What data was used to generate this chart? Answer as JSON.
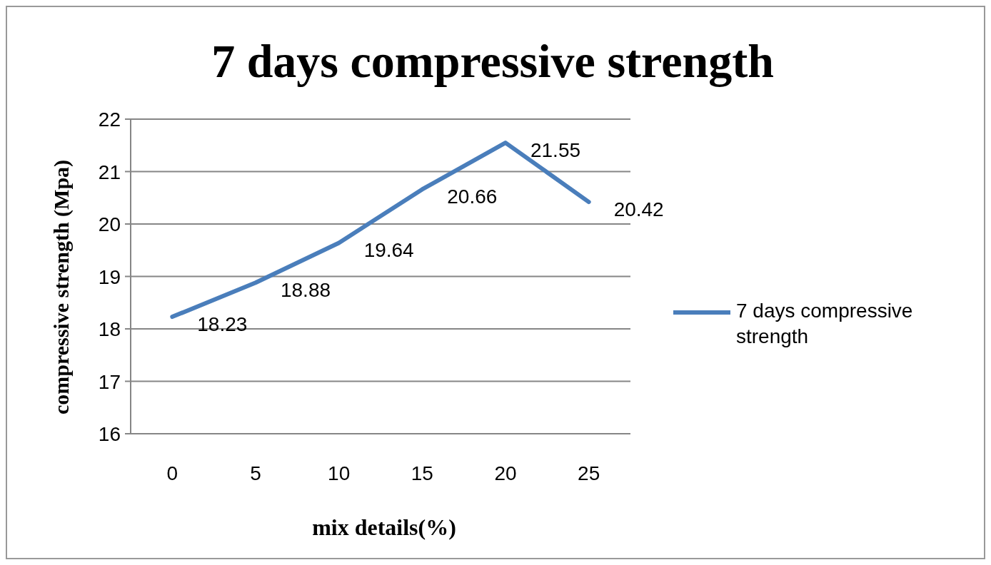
{
  "chart_data": {
    "type": "line",
    "title": "7 days compressive strength",
    "xlabel": "mix details(%)",
    "ylabel": "compressive  strength (Mpa)",
    "categories": [
      "0",
      "5",
      "10",
      "15",
      "20",
      "25"
    ],
    "series": [
      {
        "name": "7 days compressive strength",
        "color": "#4a7ebb",
        "values": [
          18.23,
          18.88,
          19.64,
          20.66,
          21.55,
          20.42
        ]
      }
    ],
    "ylim": [
      16,
      22
    ],
    "yticks": [
      16,
      17,
      18,
      19,
      20,
      21,
      22
    ],
    "grid": "y",
    "legend": "right",
    "data_labels": true,
    "marker": "none",
    "line_style": "solid"
  }
}
